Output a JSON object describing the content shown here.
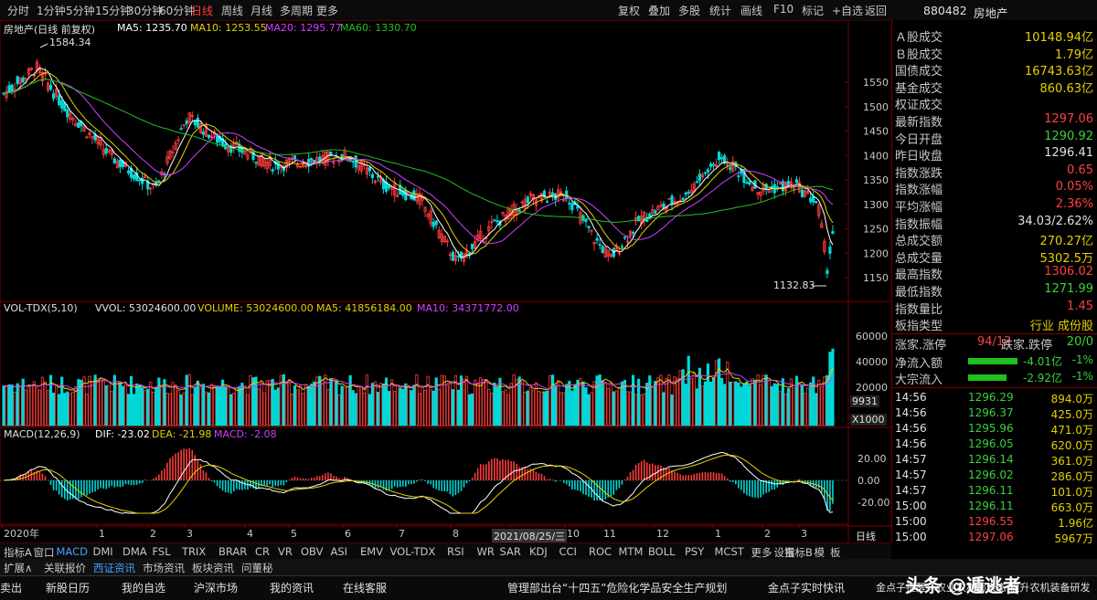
{
  "toolbar": {
    "periods": [
      "分时",
      "1分钟",
      "5分钟",
      "15分钟",
      "30分钟",
      "60分钟",
      "日线",
      "周线",
      "月线",
      "多周期",
      "更多"
    ],
    "active_period": "日线",
    "tools": [
      "复权",
      "叠加",
      "多股",
      "统计",
      "画线",
      "F10",
      "标记",
      "+自选",
      "返回"
    ]
  },
  "header_right": {
    "code": "880482",
    "name": "房地产"
  },
  "price_chart": {
    "title": "房地产(日线 前复权)",
    "ma5": "MA5: 1235.70",
    "ma10": "MA10: 1253.55",
    "ma20": "MA20: 1295.77",
    "ma60": "MA60: 1330.70",
    "high_label": "1584.34",
    "low_label": "1132.83",
    "y_ticks": [
      "1550",
      "1500",
      "1450",
      "1400",
      "1350",
      "1300",
      "1250",
      "1200",
      "1150"
    ]
  },
  "volume_chart": {
    "title": "VOL-TDX(5,10)",
    "vvol": "VVOL: 53024600.00",
    "volume": "VOLUME: 53024600.00",
    "ma5": "MA5: 41856184.00",
    "ma10": "MA10: 34371772.00",
    "y_ticks": [
      "60000",
      "40000",
      "20000"
    ],
    "unit_box1": "9931",
    "unit_box2": "X1000"
  },
  "macd_chart": {
    "title": "MACD(12,26,9)",
    "dif": "DIF: -23.02",
    "dea": "DEA: -21.98",
    "macd": "MACD: -2.08",
    "y_ticks": [
      "20.00",
      "0.00",
      "-20.00"
    ]
  },
  "x_axis": {
    "labels": [
      "2020年",
      "1",
      "2",
      "3",
      "4",
      "5",
      "6",
      "7",
      "8",
      "9",
      "10",
      "11",
      "12",
      "1",
      "2",
      "3"
    ],
    "cursor_date": "2021/08/25/三",
    "period": "日线"
  },
  "indicator_tabs": [
    "指标A",
    "窗口",
    "MACD",
    "DMI",
    "DMA",
    "FSL",
    "TRIX",
    "BRAR",
    "CR",
    "VR",
    "OBV",
    "ASI",
    "EMV",
    "VOL-TDX",
    "RSI",
    "WR",
    "SAR",
    "KDJ",
    "CCI",
    "ROC",
    "MTM",
    "BOLL",
    "PSY",
    "MCST",
    "更多",
    "设置",
    "指标B",
    "模",
    "板"
  ],
  "active_tab": "MACD",
  "stats": [
    {
      "k": "Ａ股成交",
      "v": "10148.94",
      "u": "亿",
      "c": "#e6d000"
    },
    {
      "k": "Ｂ股成交",
      "v": "1.79",
      "u": "亿",
      "c": "#e6d000"
    },
    {
      "k": "国债成交",
      "v": "16743.63",
      "u": "亿",
      "c": "#e6d000"
    },
    {
      "k": "基金成交",
      "v": "860.63",
      "u": "亿",
      "c": "#e6d000"
    },
    {
      "k": "权证成交",
      "v": "",
      "u": "",
      "c": "#e6d000"
    },
    {
      "k": "最新指数",
      "v": "1297.06",
      "u": "",
      "c": "#ff4040"
    },
    {
      "k": "今日开盘",
      "v": "1290.92",
      "u": "",
      "c": "#3cd03c"
    },
    {
      "k": "昨日收盘",
      "v": "1296.41",
      "u": "",
      "c": "#e0e0e0"
    },
    {
      "k": "指数涨跌",
      "v": "0.65",
      "u": "",
      "c": "#ff4040"
    },
    {
      "k": "指数涨幅",
      "v": "0.05%",
      "u": "",
      "c": "#ff4040"
    },
    {
      "k": "平均涨幅",
      "v": "2.36%",
      "u": "",
      "c": "#ff4040"
    },
    {
      "k": "指数振幅",
      "v": "34.03/2.62%",
      "u": "",
      "c": "#e0e0e0"
    },
    {
      "k": "总成交额",
      "v": "270.27",
      "u": "亿",
      "c": "#e6d000"
    },
    {
      "k": "总成交量",
      "v": "5302.5",
      "u": "万",
      "c": "#e6d000"
    },
    {
      "k": "最高指数",
      "v": "1306.02",
      "u": "",
      "c": "#ff4040"
    },
    {
      "k": "最低指数",
      "v": "1271.99",
      "u": "",
      "c": "#3cd03c"
    },
    {
      "k": "指数量比",
      "v": "1.45",
      "u": "",
      "c": "#ff4040"
    }
  ],
  "board": {
    "k": "板指类型",
    "v": "行业 成份股"
  },
  "updown": {
    "k1": "涨家.涨停",
    "v1": "94/12",
    "k2": "跌家.跌停",
    "v2": "20/0"
  },
  "flows": [
    {
      "k": "净流入额",
      "v": "-4.01亿",
      "p": "-1%",
      "fill": 0.45
    },
    {
      "k": "大宗流入",
      "v": "-2.92亿",
      "p": "-1%",
      "fill": 0.35
    }
  ],
  "ticks": [
    {
      "t": "14:56",
      "p": "1296.29",
      "v": "894.0万",
      "c": "#3cd03c"
    },
    {
      "t": "14:56",
      "p": "1296.37",
      "v": "425.0万",
      "c": "#3cd03c"
    },
    {
      "t": "14:56",
      "p": "1295.96",
      "v": "471.0万",
      "c": "#3cd03c"
    },
    {
      "t": "14:56",
      "p": "1296.05",
      "v": "620.0万",
      "c": "#3cd03c"
    },
    {
      "t": "14:57",
      "p": "1296.14",
      "v": "361.0万",
      "c": "#3cd03c"
    },
    {
      "t": "14:57",
      "p": "1296.02",
      "v": "286.0万",
      "c": "#3cd03c"
    },
    {
      "t": "14:57",
      "p": "1296.11",
      "v": "101.0万",
      "c": "#3cd03c"
    },
    {
      "t": "15:00",
      "p": "1296.11",
      "v": "663.0万",
      "c": "#3cd03c"
    },
    {
      "t": "15:00",
      "p": "1296.55",
      "v": "1.96亿",
      "c": "#ff4040"
    },
    {
      "t": "15:00",
      "p": "1297.06",
      "v": "5967万",
      "c": "#ff4040"
    }
  ],
  "bottom_nav": [
    "扩展∧",
    "关联报价",
    "西证资讯",
    "市场资讯",
    "板块资讯",
    "问董秘"
  ],
  "info_bar": {
    "items": [
      "卖出",
      "新股日历",
      "我的自选",
      "沪深市场",
      "我的资讯",
      "在线客服"
    ],
    "news": "管理部出台“十四五”危险化学品安全生产规划",
    "news2": "金点子实时快讯",
    "news3": "金点子提醒：农业农村部表态 提升农机装备研发",
    "watermark": "头条 @遁逃者"
  },
  "colors": {
    "up": "#ff3b3b",
    "down": "#00d8d8",
    "ma5": "#ffffff",
    "ma10": "#e6d000",
    "ma20": "#d040ff",
    "ma60": "#20c020"
  }
}
